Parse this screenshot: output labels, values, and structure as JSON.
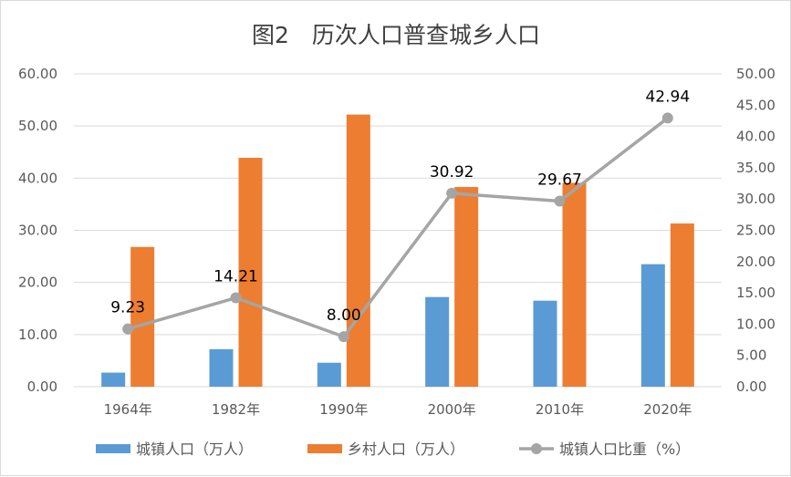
{
  "chart_data": {
    "type": "bar",
    "title": "图2　历次人口普查城乡人口",
    "categories": [
      "1964年",
      "1982年",
      "1990年",
      "2000年",
      "2010年",
      "2020年"
    ],
    "y_left": {
      "lim": [
        0,
        60
      ],
      "ticks": [
        "0.00",
        "10.00",
        "20.00",
        "30.00",
        "40.00",
        "50.00",
        "60.00"
      ]
    },
    "y_right": {
      "lim": [
        0,
        50
      ],
      "ticks": [
        "0.00",
        "5.00",
        "10.00",
        "15.00",
        "20.00",
        "25.00",
        "30.00",
        "35.00",
        "40.00",
        "45.00",
        "50.00"
      ]
    },
    "grid": true,
    "legend_position": "bottom",
    "series": [
      {
        "name": "城镇人口（万人）",
        "type": "bar",
        "axis": "left",
        "color": "#5b9bd5",
        "values": [
          2.7,
          7.2,
          4.6,
          17.2,
          16.5,
          23.5
        ]
      },
      {
        "name": "乡村人口（万人）",
        "type": "bar",
        "axis": "left",
        "color": "#ed7d31",
        "values": [
          26.8,
          43.9,
          52.2,
          38.3,
          39.1,
          31.3
        ]
      },
      {
        "name": "城镇人口比重（%）",
        "type": "line",
        "axis": "right",
        "color": "#a5a5a5",
        "values": [
          9.23,
          14.21,
          8.0,
          30.92,
          29.67,
          42.94
        ],
        "labels": [
          "9.23",
          "14.21",
          "8.00",
          "30.92",
          "29.67",
          "42.94"
        ]
      }
    ]
  }
}
